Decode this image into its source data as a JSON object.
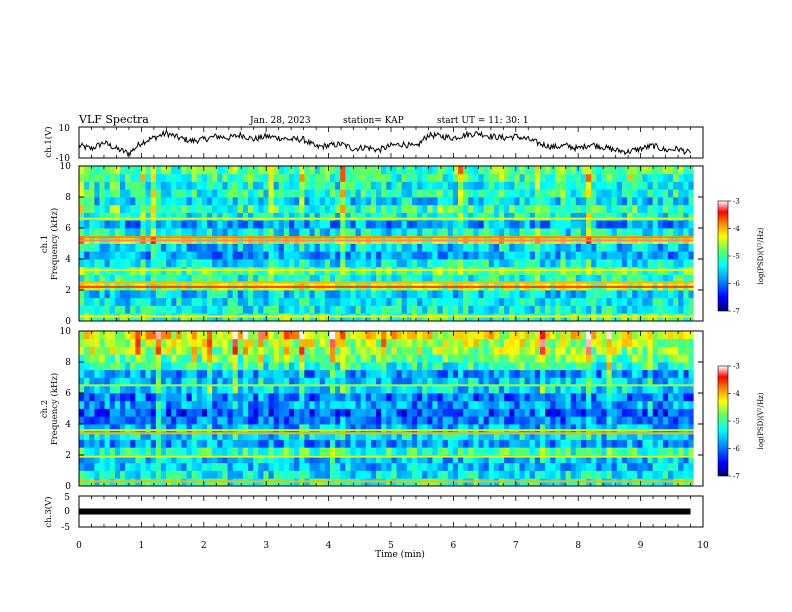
{
  "header": {
    "title": "VLF Spectra",
    "date": "Jan. 28, 2023",
    "station": "station= KAP",
    "start": "start  UT =   11: 30: 1"
  },
  "colors": {
    "colormap": [
      "#000080",
      "#0000ff",
      "#00a0ff",
      "#00ffff",
      "#60ff60",
      "#ffff00",
      "#ff8000",
      "#ff0000",
      "#ffffff"
    ]
  },
  "chart_data": [
    {
      "type": "line",
      "name": "ch1-voltage",
      "ylabel": "ch.1(V)",
      "ylim": [
        -10,
        10
      ],
      "yticks": [
        "10",
        "-10"
      ],
      "x": [
        0.0,
        0.2,
        0.4,
        0.6,
        0.8,
        1.0,
        1.2,
        1.4,
        1.6,
        1.8,
        2.0,
        2.2,
        2.4,
        2.6,
        2.8,
        3.0,
        3.2,
        3.4,
        3.6,
        3.8,
        4.0,
        4.2,
        4.4,
        4.6,
        4.8,
        5.0,
        5.2,
        5.4,
        5.6,
        5.8,
        6.0,
        6.2,
        6.4,
        6.6,
        6.8,
        7.0,
        7.2,
        7.4,
        7.6,
        7.8,
        8.0,
        8.2,
        8.4,
        8.6,
        8.8,
        9.0,
        9.2,
        9.4,
        9.6,
        9.8
      ],
      "values": [
        -2,
        -4,
        0,
        -4,
        -7,
        0,
        3,
        6,
        3,
        1,
        2,
        4,
        3,
        5,
        2,
        4,
        3,
        2,
        2,
        -3,
        -2,
        -1,
        -4,
        -3,
        -5,
        -2,
        -1,
        -3,
        5,
        4,
        3,
        5,
        6,
        4,
        3,
        4,
        2,
        -1,
        -3,
        -2,
        -4,
        -1,
        -3,
        -5,
        -6,
        -4,
        -2,
        -5,
        -4,
        -7
      ]
    },
    {
      "type": "heatmap",
      "name": "ch1-spectrogram",
      "ylabel": "ch.1",
      "ylabel2": "Frequency (kHz)",
      "ylim": [
        0,
        10
      ],
      "yticks": [
        "0",
        "2",
        "4",
        "6",
        "8",
        "10"
      ],
      "colorbar_label": "log(PSD)(V²/Hz)",
      "colorbar_ticks": [
        "-3",
        "-4",
        "-5",
        "-6",
        "-7"
      ],
      "crange": [
        -7,
        -3
      ],
      "freq_kHz": [
        0.25,
        0.75,
        1.25,
        1.75,
        2.25,
        2.75,
        3.25,
        3.75,
        4.25,
        4.75,
        5.25,
        5.75,
        6.25,
        6.75,
        7.25,
        7.75,
        8.25,
        8.75,
        9.25,
        9.75
      ],
      "log_psd": [
        -5.0,
        -5.3,
        -5.4,
        -5.5,
        -4.6,
        -5.2,
        -5.0,
        -5.4,
        -5.8,
        -5.6,
        -4.5,
        -5.4,
        -5.8,
        -5.3,
        -5.1,
        -5.5,
        -5.2,
        -5.3,
        -5.1,
        -5.0
      ],
      "lines_kHz": [
        0.3,
        2.2,
        2.5,
        3.3,
        5.2,
        5.4,
        6.6
      ],
      "line_levels": [
        -4.2,
        -3.6,
        -4.0,
        -4.3,
        -3.2,
        -3.8,
        -4.4
      ]
    },
    {
      "type": "heatmap",
      "name": "ch2-spectrogram",
      "ylabel": "ch.2",
      "ylabel2": "Frequency (kHz)",
      "ylim": [
        0,
        10
      ],
      "yticks": [
        "0",
        "2",
        "4",
        "6",
        "8",
        "10"
      ],
      "colorbar_label": "log(PSD)(V²/Hz)",
      "colorbar_ticks": [
        "-3",
        "-4",
        "-5",
        "-6",
        "-7"
      ],
      "crange": [
        -7,
        -3
      ],
      "freq_kHz": [
        0.25,
        0.75,
        1.25,
        1.75,
        2.25,
        2.75,
        3.25,
        3.75,
        4.25,
        4.75,
        5.25,
        5.75,
        6.25,
        6.75,
        7.25,
        7.75,
        8.25,
        8.75,
        9.25,
        9.75
      ],
      "log_psd": [
        -5.2,
        -5.4,
        -5.6,
        -5.6,
        -5.1,
        -5.8,
        -5.5,
        -5.7,
        -6.0,
        -6.2,
        -5.8,
        -6.0,
        -5.5,
        -5.6,
        -5.8,
        -5.2,
        -4.9,
        -4.6,
        -4.5,
        -4.3
      ],
      "lines_kHz": [
        0.3,
        1.9,
        3.4,
        3.6,
        6.5
      ],
      "line_levels": [
        -4.0,
        -4.4,
        -4.0,
        -4.5,
        -4.6
      ]
    },
    {
      "type": "line",
      "name": "ch3-voltage",
      "ylabel": "ch.3(V)",
      "ylim": [
        -5,
        5
      ],
      "yticks": [
        "5",
        "0",
        "-5"
      ],
      "x": [
        0,
        9.8
      ],
      "values": [
        0,
        0
      ]
    }
  ],
  "xaxis": {
    "label": "Time (min)",
    "xlim": [
      0,
      10
    ],
    "ticks": [
      "0",
      "1",
      "2",
      "3",
      "4",
      "5",
      "6",
      "7",
      "8",
      "9",
      "10"
    ]
  }
}
